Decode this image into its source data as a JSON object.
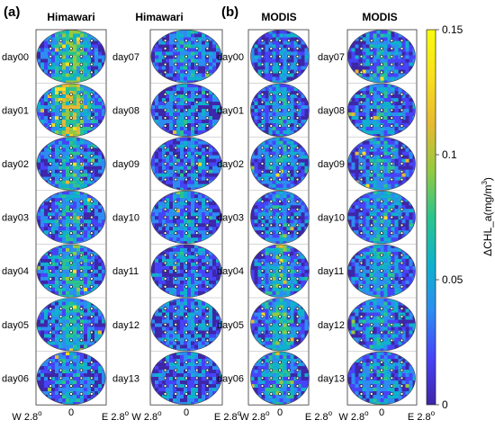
{
  "panels": [
    {
      "letter": "(a)",
      "source": "Himawari"
    },
    {
      "letter": "(b)",
      "source": "MODIS"
    }
  ],
  "columns": [
    {
      "title": "Himawari",
      "days": [
        "day00",
        "day01",
        "day02",
        "day03",
        "day04",
        "day05",
        "day06"
      ],
      "intensity": [
        0.75,
        0.95,
        0.45,
        0.4,
        0.55,
        0.42,
        0.35
      ]
    },
    {
      "title": "Himawari",
      "days": [
        "day07",
        "day08",
        "day09",
        "day10",
        "day11",
        "day12",
        "day13"
      ],
      "intensity": [
        0.3,
        0.25,
        0.25,
        0.25,
        0.2,
        0.2,
        0.18
      ]
    },
    {
      "title": "MODIS",
      "days": [
        "day00",
        "day01",
        "day02",
        "day03",
        "day04",
        "day05",
        "day06"
      ],
      "intensity": [
        0.2,
        0.3,
        0.35,
        0.3,
        0.55,
        0.55,
        0.45
      ]
    },
    {
      "title": "MODIS",
      "days": [
        "day07",
        "day08",
        "day09",
        "day10",
        "day11",
        "day12",
        "day13"
      ],
      "intensity": [
        0.35,
        0.3,
        0.35,
        0.4,
        0.4,
        0.3,
        0.3
      ]
    }
  ],
  "x_axis": {
    "left": "W 2.8",
    "center": "0",
    "right": "E 2.8",
    "unit_sup": "o"
  },
  "colorbar": {
    "label": "ΔCHL_a(mg/m",
    "label_sup": "3",
    "label_end": ")",
    "ticks": [
      "0.15",
      "0.1",
      "0.05",
      "0"
    ],
    "tick_values": [
      0.15,
      0.1,
      0.05,
      0
    ],
    "range": [
      0,
      0.15
    ],
    "colormap": [
      "#3e26a8",
      "#4743f8",
      "#2d8df2",
      "#0fb2cc",
      "#2bc48d",
      "#94ca40",
      "#e7ba31",
      "#f7e01e",
      "#f9fb0e"
    ]
  },
  "colors": {
    "background": "#ffffff",
    "marker_fill": "#ffffff",
    "marker_edge": "#111111"
  }
}
